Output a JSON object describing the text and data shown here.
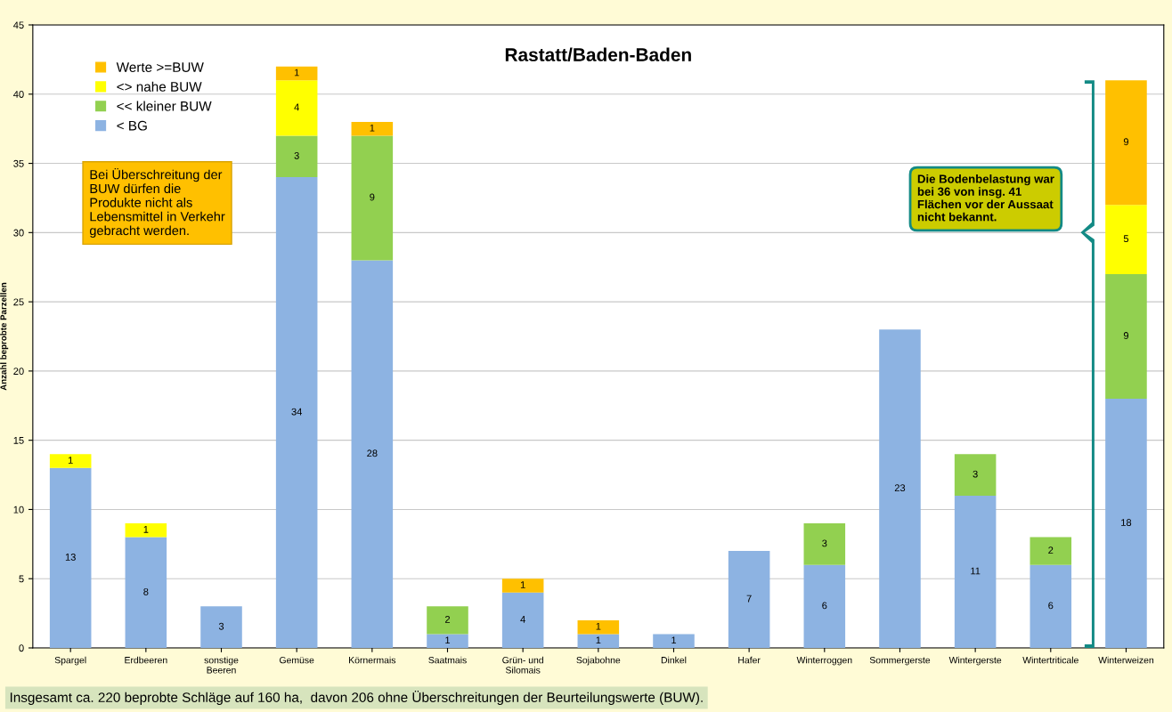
{
  "chart_data": {
    "type": "bar",
    "title": "Rastatt/Baden-Baden",
    "ylabel": "Anzahl beprobte Parzellen",
    "categories": [
      "Spargel",
      "Erdbeeren",
      "sonstige\nBeeren",
      "Gemüse",
      "Körnermais",
      "Saatmais",
      "Grün- und\nSilomais",
      "Sojabohne",
      "Dinkel",
      "Hafer",
      "Winterroggen",
      "Sommergerste",
      "Wintergerste",
      "Wintertriticale",
      "Winterweizen"
    ],
    "stacked": true,
    "data_labels": true,
    "grid": "y",
    "legend": "top left",
    "ylim": [
      0,
      45
    ],
    "yticks": [
      0,
      5,
      10,
      15,
      20,
      25,
      30,
      35,
      40,
      45
    ],
    "series": [
      {
        "name": "< BG",
        "color": "#8db3e2",
        "values": [
          13,
          8,
          3,
          34,
          28,
          1,
          4,
          1,
          1,
          7,
          6,
          23,
          11,
          6,
          18
        ]
      },
      {
        "name": "<< kleiner BUW",
        "color": "#92d050",
        "values": [
          null,
          null,
          null,
          3,
          9,
          2,
          null,
          null,
          null,
          null,
          3,
          null,
          3,
          2,
          9
        ]
      },
      {
        "name": "<> nahe BUW",
        "color": "#ffff00",
        "values": [
          1,
          1,
          null,
          4,
          null,
          null,
          null,
          null,
          null,
          null,
          null,
          null,
          null,
          null,
          5
        ]
      },
      {
        "name": "Werte >=BUW",
        "color": "#ffc000",
        "values": [
          null,
          null,
          null,
          1,
          1,
          null,
          1,
          1,
          null,
          null,
          null,
          null,
          null,
          null,
          9
        ]
      }
    ],
    "annotations": [
      "Bei Überschreitung der\nBUW dürfen die\nProdukte nicht als\nLebensmittel in Verkehr\ngebracht werden.",
      "Die Bodenbelastung war\nbei 36 von insg. 41\nFlächen vor der Aussaat\nnicht bekannt.",
      "Insgesamt ca. 220 beprobte Schläge auf 160 ha,  davon 206 ohne Überschreitungen der Beurteilungswerte (BUW)."
    ]
  }
}
